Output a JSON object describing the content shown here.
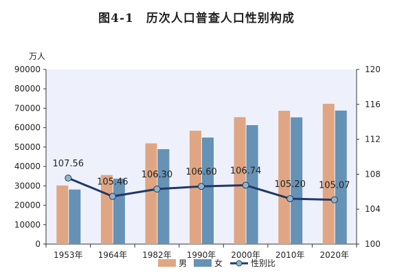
{
  "title": "图4-1　历次人口普查人口性别构成",
  "chart_data": {
    "type": "bar",
    "categories": [
      "1953年",
      "1964年",
      "1982年",
      "1990年",
      "2000年",
      "2010年",
      "2020年"
    ],
    "left_unit": "万人",
    "left_axis": {
      "min": 0,
      "max": 90000,
      "ticks": [
        "0",
        "10000",
        "20000",
        "30000",
        "40000",
        "50000",
        "60000",
        "70000",
        "80000",
        "90000"
      ]
    },
    "right_axis": {
      "min": 100,
      "max": 120,
      "ticks": [
        "100",
        "104",
        "108",
        "112",
        "116",
        "120"
      ]
    },
    "series": [
      {
        "name": "男",
        "kind": "bar",
        "color": "#E0A683",
        "values": [
          30200,
          35600,
          51900,
          58400,
          65400,
          68700,
          72300
        ]
      },
      {
        "name": "女",
        "kind": "bar",
        "color": "#6592B5",
        "values": [
          28100,
          33700,
          48900,
          54900,
          61300,
          65300,
          68800
        ]
      },
      {
        "name": "性别比",
        "kind": "line",
        "axis": "right",
        "color": "#1F3868",
        "marker_color": "#8FB6C8",
        "values": [
          107.56,
          105.46,
          106.3,
          106.6,
          106.74,
          105.2,
          105.07
        ],
        "labels": [
          "107.56",
          "105.46",
          "106.30",
          "106.60",
          "106.74",
          "105.20",
          "105.07"
        ]
      }
    ],
    "legend_position": "bottom",
    "plot_background": "#EEF1FB",
    "grid": false
  }
}
